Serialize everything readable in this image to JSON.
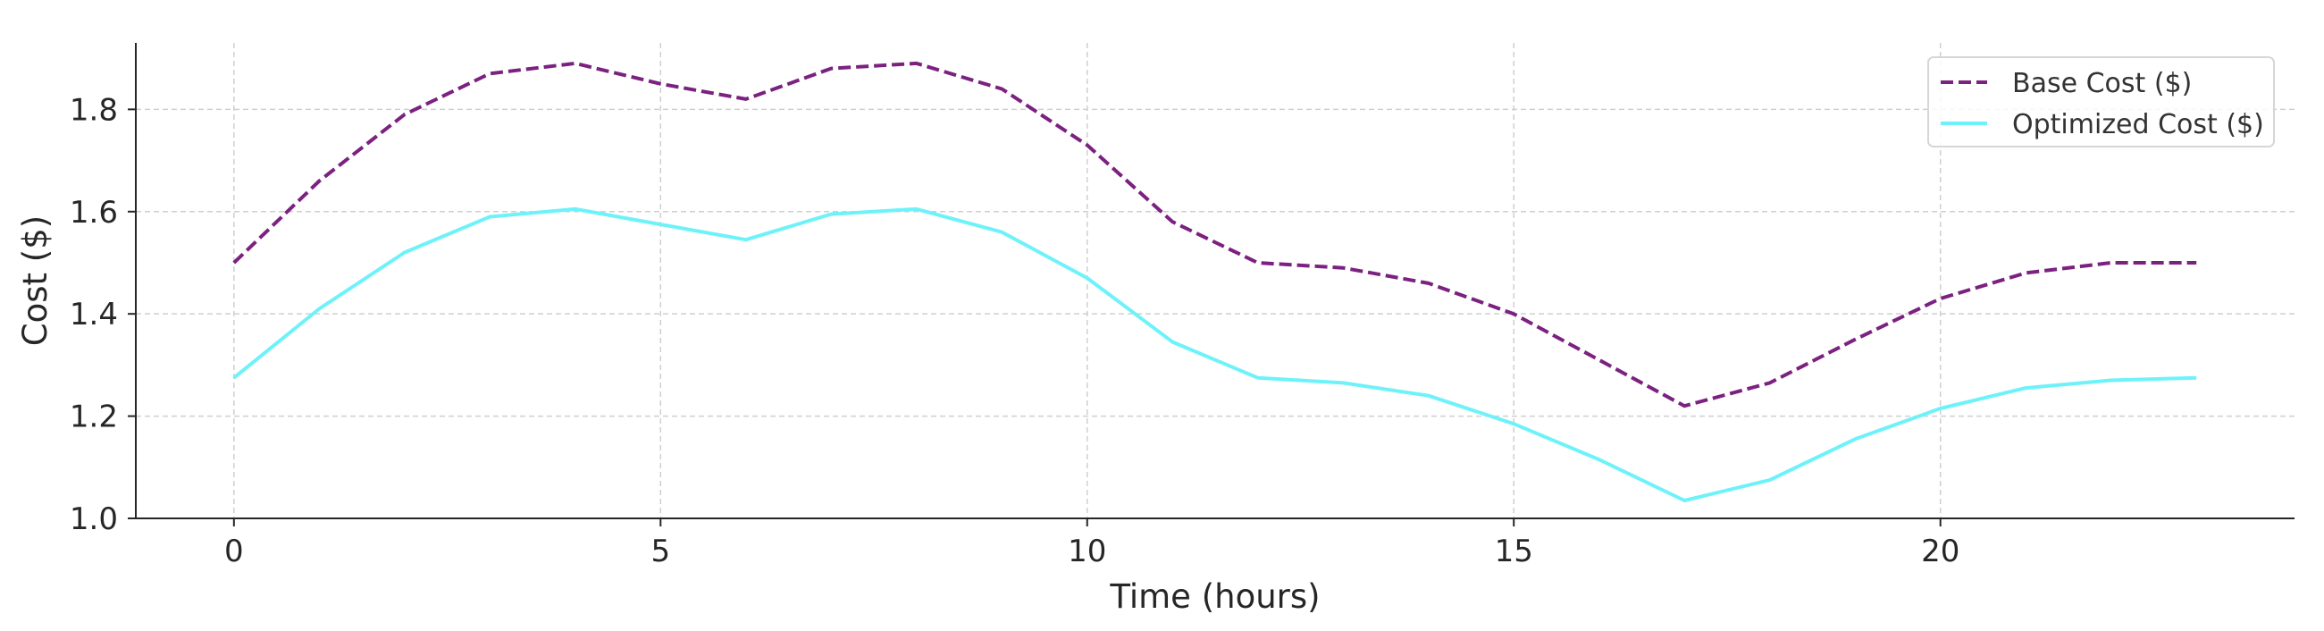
{
  "chart_data": {
    "type": "line",
    "title": "",
    "xlabel": "Time (hours)",
    "ylabel": "Cost ($)",
    "x": [
      0,
      1,
      2,
      3,
      4,
      5,
      6,
      7,
      8,
      9,
      10,
      11,
      12,
      13,
      14,
      15,
      16,
      17,
      18,
      19,
      20,
      21,
      22,
      23
    ],
    "xlim": [
      -1.15,
      24.15
    ],
    "ylim": [
      1.0,
      1.93
    ],
    "xticks": [
      0,
      5,
      10,
      15,
      20
    ],
    "yticks": [
      1.0,
      1.2,
      1.4,
      1.6,
      1.8
    ],
    "xtick_labels": [
      "0",
      "5",
      "10",
      "15",
      "20"
    ],
    "ytick_labels": [
      "1.0",
      "1.2",
      "1.4",
      "1.6",
      "1.8"
    ],
    "grid": true,
    "legend_position": "top-right",
    "series": [
      {
        "name": "Base Cost ($)",
        "color": "#7b2180",
        "style": "dashed",
        "values": [
          1.5,
          1.66,
          1.79,
          1.87,
          1.89,
          1.85,
          1.82,
          1.88,
          1.89,
          1.84,
          1.73,
          1.58,
          1.5,
          1.49,
          1.46,
          1.4,
          1.31,
          1.22,
          1.265,
          1.35,
          1.43,
          1.48,
          1.5,
          1.5
        ]
      },
      {
        "name": "Optimized Cost ($)",
        "color": "#6ef2fa",
        "style": "solid",
        "values": [
          1.275,
          1.41,
          1.52,
          1.59,
          1.605,
          1.575,
          1.545,
          1.595,
          1.605,
          1.56,
          1.47,
          1.345,
          1.275,
          1.265,
          1.24,
          1.185,
          1.115,
          1.035,
          1.075,
          1.155,
          1.215,
          1.255,
          1.27,
          1.275
        ]
      }
    ]
  }
}
